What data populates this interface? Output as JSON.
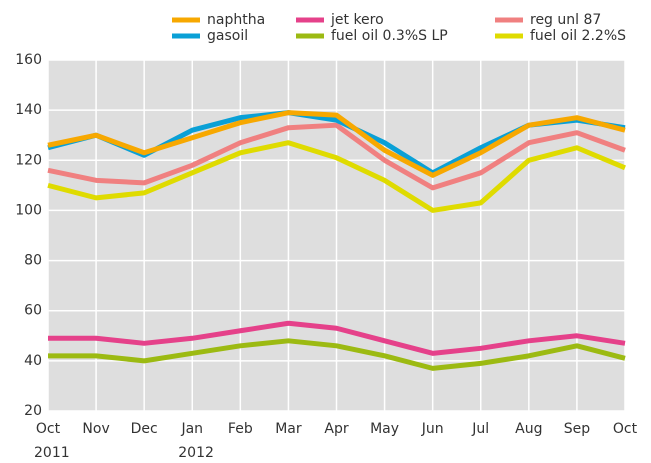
{
  "chart_data": {
    "type": "line",
    "categories": [
      "Oct 2011",
      "Nov",
      "Dec",
      "Jan 2012",
      "Feb",
      "Mar",
      "Apr",
      "May",
      "Jun",
      "Jul",
      "Aug",
      "Sep",
      "Oct"
    ],
    "series": [
      {
        "name": "naphtha",
        "color": "#f7a800",
        "values": [
          126,
          130,
          123,
          129,
          135,
          139,
          138,
          124,
          114,
          123,
          134,
          137,
          132
        ]
      },
      {
        "name": "gasoil",
        "color": "#0aa0d6",
        "values": [
          125,
          130,
          122,
          132,
          137,
          139,
          136,
          127,
          115,
          125,
          134,
          136,
          133
        ]
      },
      {
        "name": "jet kero",
        "color": "#e5418a",
        "values": [
          49,
          49,
          47,
          49,
          52,
          55,
          53,
          48,
          43,
          45,
          48,
          50,
          47
        ]
      },
      {
        "name": "fuel oil 0.3%S LP",
        "color": "#9cba12",
        "values": [
          42,
          42,
          40,
          43,
          46,
          48,
          46,
          42,
          37,
          39,
          42,
          46,
          41
        ]
      },
      {
        "name": "reg unl 87",
        "color": "#f08080",
        "values": [
          116,
          112,
          111,
          118,
          127,
          133,
          134,
          120,
          109,
          115,
          127,
          131,
          124
        ]
      },
      {
        "name": "fuel oil 2.2%S",
        "color": "#dfdb00",
        "values": [
          110,
          105,
          107,
          115,
          123,
          127,
          121,
          112,
          100,
          103,
          120,
          125,
          117
        ]
      }
    ],
    "ylim": [
      20,
      160
    ],
    "yticks": [
      20,
      40,
      60,
      80,
      100,
      120,
      140,
      160
    ],
    "grid": true
  }
}
